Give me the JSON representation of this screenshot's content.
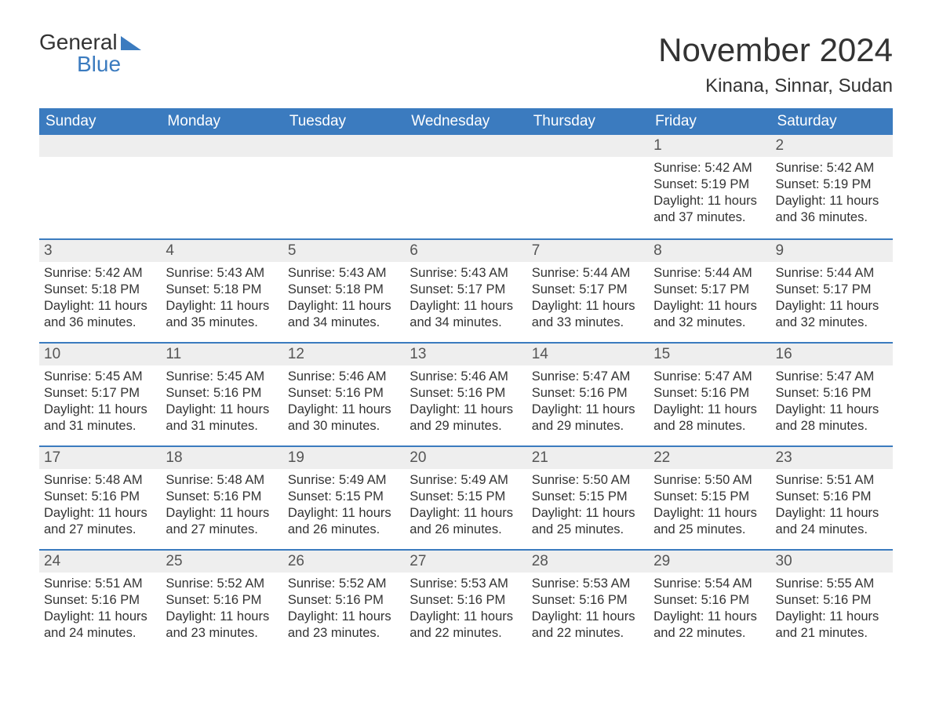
{
  "logo": {
    "word1": "General",
    "word2": "Blue"
  },
  "title": "November 2024",
  "location": "Kinana, Sinnar, Sudan",
  "colors": {
    "header_bg": "#3b7bbf",
    "header_text": "#ffffff",
    "daynum_bg": "#eeeeee",
    "border": "#3b7bbf",
    "text": "#333333",
    "background": "#ffffff"
  },
  "weekdays": [
    "Sunday",
    "Monday",
    "Tuesday",
    "Wednesday",
    "Thursday",
    "Friday",
    "Saturday"
  ],
  "weeks": [
    [
      null,
      null,
      null,
      null,
      null,
      {
        "n": "1",
        "sunrise": "Sunrise: 5:42 AM",
        "sunset": "Sunset: 5:19 PM",
        "daylight": "Daylight: 11 hours and 37 minutes."
      },
      {
        "n": "2",
        "sunrise": "Sunrise: 5:42 AM",
        "sunset": "Sunset: 5:19 PM",
        "daylight": "Daylight: 11 hours and 36 minutes."
      }
    ],
    [
      {
        "n": "3",
        "sunrise": "Sunrise: 5:42 AM",
        "sunset": "Sunset: 5:18 PM",
        "daylight": "Daylight: 11 hours and 36 minutes."
      },
      {
        "n": "4",
        "sunrise": "Sunrise: 5:43 AM",
        "sunset": "Sunset: 5:18 PM",
        "daylight": "Daylight: 11 hours and 35 minutes."
      },
      {
        "n": "5",
        "sunrise": "Sunrise: 5:43 AM",
        "sunset": "Sunset: 5:18 PM",
        "daylight": "Daylight: 11 hours and 34 minutes."
      },
      {
        "n": "6",
        "sunrise": "Sunrise: 5:43 AM",
        "sunset": "Sunset: 5:17 PM",
        "daylight": "Daylight: 11 hours and 34 minutes."
      },
      {
        "n": "7",
        "sunrise": "Sunrise: 5:44 AM",
        "sunset": "Sunset: 5:17 PM",
        "daylight": "Daylight: 11 hours and 33 minutes."
      },
      {
        "n": "8",
        "sunrise": "Sunrise: 5:44 AM",
        "sunset": "Sunset: 5:17 PM",
        "daylight": "Daylight: 11 hours and 32 minutes."
      },
      {
        "n": "9",
        "sunrise": "Sunrise: 5:44 AM",
        "sunset": "Sunset: 5:17 PM",
        "daylight": "Daylight: 11 hours and 32 minutes."
      }
    ],
    [
      {
        "n": "10",
        "sunrise": "Sunrise: 5:45 AM",
        "sunset": "Sunset: 5:17 PM",
        "daylight": "Daylight: 11 hours and 31 minutes."
      },
      {
        "n": "11",
        "sunrise": "Sunrise: 5:45 AM",
        "sunset": "Sunset: 5:16 PM",
        "daylight": "Daylight: 11 hours and 31 minutes."
      },
      {
        "n": "12",
        "sunrise": "Sunrise: 5:46 AM",
        "sunset": "Sunset: 5:16 PM",
        "daylight": "Daylight: 11 hours and 30 minutes."
      },
      {
        "n": "13",
        "sunrise": "Sunrise: 5:46 AM",
        "sunset": "Sunset: 5:16 PM",
        "daylight": "Daylight: 11 hours and 29 minutes."
      },
      {
        "n": "14",
        "sunrise": "Sunrise: 5:47 AM",
        "sunset": "Sunset: 5:16 PM",
        "daylight": "Daylight: 11 hours and 29 minutes."
      },
      {
        "n": "15",
        "sunrise": "Sunrise: 5:47 AM",
        "sunset": "Sunset: 5:16 PM",
        "daylight": "Daylight: 11 hours and 28 minutes."
      },
      {
        "n": "16",
        "sunrise": "Sunrise: 5:47 AM",
        "sunset": "Sunset: 5:16 PM",
        "daylight": "Daylight: 11 hours and 28 minutes."
      }
    ],
    [
      {
        "n": "17",
        "sunrise": "Sunrise: 5:48 AM",
        "sunset": "Sunset: 5:16 PM",
        "daylight": "Daylight: 11 hours and 27 minutes."
      },
      {
        "n": "18",
        "sunrise": "Sunrise: 5:48 AM",
        "sunset": "Sunset: 5:16 PM",
        "daylight": "Daylight: 11 hours and 27 minutes."
      },
      {
        "n": "19",
        "sunrise": "Sunrise: 5:49 AM",
        "sunset": "Sunset: 5:15 PM",
        "daylight": "Daylight: 11 hours and 26 minutes."
      },
      {
        "n": "20",
        "sunrise": "Sunrise: 5:49 AM",
        "sunset": "Sunset: 5:15 PM",
        "daylight": "Daylight: 11 hours and 26 minutes."
      },
      {
        "n": "21",
        "sunrise": "Sunrise: 5:50 AM",
        "sunset": "Sunset: 5:15 PM",
        "daylight": "Daylight: 11 hours and 25 minutes."
      },
      {
        "n": "22",
        "sunrise": "Sunrise: 5:50 AM",
        "sunset": "Sunset: 5:15 PM",
        "daylight": "Daylight: 11 hours and 25 minutes."
      },
      {
        "n": "23",
        "sunrise": "Sunrise: 5:51 AM",
        "sunset": "Sunset: 5:16 PM",
        "daylight": "Daylight: 11 hours and 24 minutes."
      }
    ],
    [
      {
        "n": "24",
        "sunrise": "Sunrise: 5:51 AM",
        "sunset": "Sunset: 5:16 PM",
        "daylight": "Daylight: 11 hours and 24 minutes."
      },
      {
        "n": "25",
        "sunrise": "Sunrise: 5:52 AM",
        "sunset": "Sunset: 5:16 PM",
        "daylight": "Daylight: 11 hours and 23 minutes."
      },
      {
        "n": "26",
        "sunrise": "Sunrise: 5:52 AM",
        "sunset": "Sunset: 5:16 PM",
        "daylight": "Daylight: 11 hours and 23 minutes."
      },
      {
        "n": "27",
        "sunrise": "Sunrise: 5:53 AM",
        "sunset": "Sunset: 5:16 PM",
        "daylight": "Daylight: 11 hours and 22 minutes."
      },
      {
        "n": "28",
        "sunrise": "Sunrise: 5:53 AM",
        "sunset": "Sunset: 5:16 PM",
        "daylight": "Daylight: 11 hours and 22 minutes."
      },
      {
        "n": "29",
        "sunrise": "Sunrise: 5:54 AM",
        "sunset": "Sunset: 5:16 PM",
        "daylight": "Daylight: 11 hours and 22 minutes."
      },
      {
        "n": "30",
        "sunrise": "Sunrise: 5:55 AM",
        "sunset": "Sunset: 5:16 PM",
        "daylight": "Daylight: 11 hours and 21 minutes."
      }
    ]
  ]
}
